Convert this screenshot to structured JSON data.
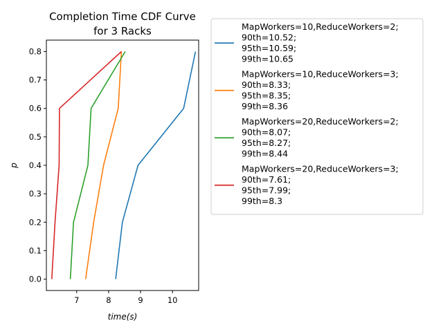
{
  "chart_data": {
    "type": "line",
    "title_lines": [
      "Completion Time CDF Curve",
      "for 3 Racks"
    ],
    "xlabel": "time(s)",
    "ylabel": "p",
    "xlim": [
      6.05,
      10.82
    ],
    "ylim": [
      -0.04,
      0.84
    ],
    "xticks": [
      7,
      8,
      9,
      10
    ],
    "yticks": [
      0.0,
      0.1,
      0.2,
      0.3,
      0.4,
      0.5,
      0.6,
      0.7,
      0.8
    ],
    "ytick_labels": [
      "0.0",
      "0.1",
      "0.2",
      "0.3",
      "0.4",
      "0.5",
      "0.6",
      "0.7",
      "0.8"
    ],
    "grid": false,
    "legend_placement": "outside-right",
    "series": [
      {
        "name_lines": [
          "MapWorkers=10,ReduceWorkers=2;",
          "90th=10.52;",
          "95th=10.59;",
          "99th=10.65"
        ],
        "color": "#1f77b4",
        "x": [
          8.22,
          8.43,
          8.92,
          10.35,
          10.72
        ],
        "y": [
          0.0,
          0.2,
          0.4,
          0.6,
          0.8
        ]
      },
      {
        "name_lines": [
          "MapWorkers=10,ReduceWorkers=3;",
          "90th=8.33;",
          "95th=8.35;",
          "99th=8.36"
        ],
        "color": "#ff7f0e",
        "x": [
          7.28,
          7.53,
          7.84,
          8.3,
          8.4
        ],
        "y": [
          0.0,
          0.2,
          0.4,
          0.6,
          0.8
        ]
      },
      {
        "name_lines": [
          "MapWorkers=20,ReduceWorkers=2;",
          "90th=8.07;",
          "95th=8.27;",
          "99th=8.44"
        ],
        "color": "#2ca02c",
        "x": [
          6.8,
          6.9,
          7.35,
          7.45,
          8.52
        ],
        "y": [
          0.0,
          0.2,
          0.4,
          0.6,
          0.8
        ]
      },
      {
        "name_lines": [
          "MapWorkers=20,ReduceWorkers=3;",
          "90th=7.61;",
          "95th=7.99;",
          "99th=8.3"
        ],
        "color": "#d62728",
        "x": [
          6.22,
          6.32,
          6.45,
          6.46,
          8.4
        ],
        "y": [
          0.0,
          0.2,
          0.4,
          0.6,
          0.8
        ]
      }
    ]
  }
}
